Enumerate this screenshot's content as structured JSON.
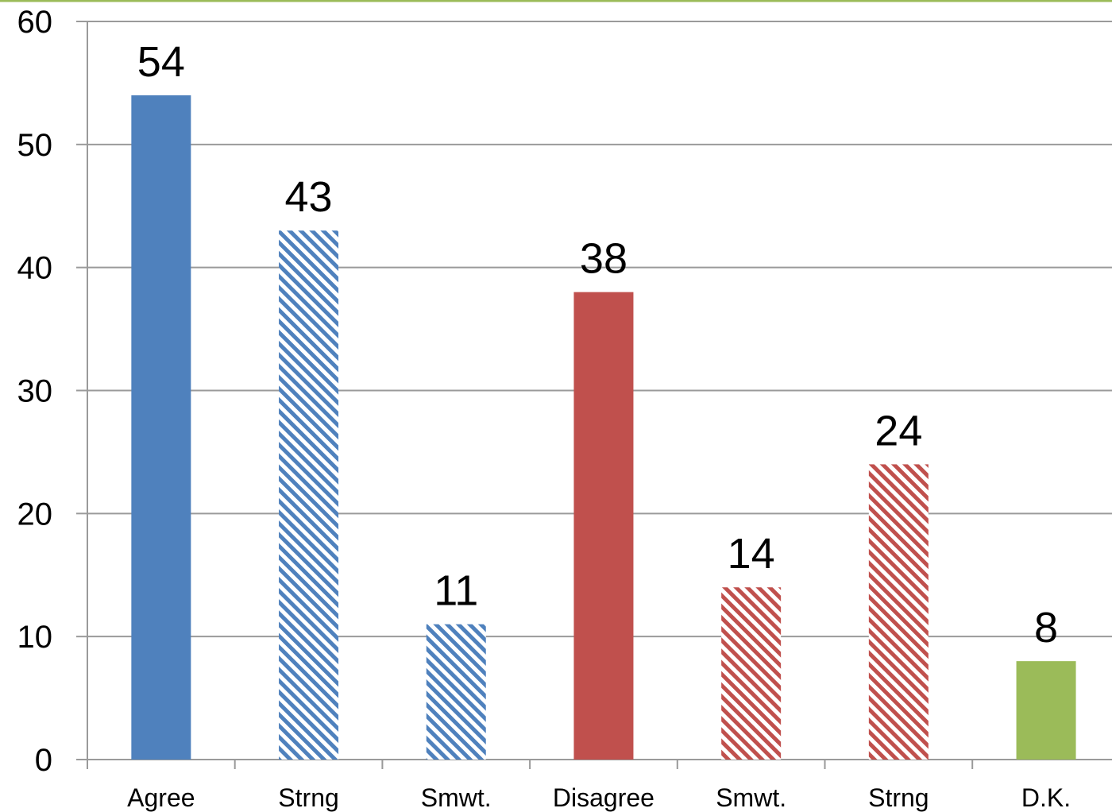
{
  "colors": {
    "blue": "#4f81bd",
    "red": "#c0504d",
    "green": "#9bbb59",
    "gridline": "#9a9a9a",
    "axis": "#9a9a9a",
    "top_border": "#9bbb59"
  },
  "chart_data": {
    "type": "bar",
    "categories": [
      "Agree",
      "Strng",
      "Smwt.",
      "Disagree",
      "Smwt.",
      "Strng",
      "D.K."
    ],
    "values": [
      54,
      43,
      11,
      38,
      14,
      24,
      8
    ],
    "data_labels": [
      "54",
      "43",
      "11",
      "38",
      "14",
      "24",
      "8"
    ],
    "bar_styles": [
      {
        "color": "#4f81bd",
        "fill": "solid"
      },
      {
        "color": "#4f81bd",
        "fill": "hatched"
      },
      {
        "color": "#4f81bd",
        "fill": "hatched"
      },
      {
        "color": "#c0504d",
        "fill": "solid"
      },
      {
        "color": "#c0504d",
        "fill": "hatched"
      },
      {
        "color": "#c0504d",
        "fill": "hatched"
      },
      {
        "color": "#9bbb59",
        "fill": "solid"
      }
    ],
    "title": "",
    "xlabel": "",
    "ylabel": "",
    "ylim": [
      0,
      60
    ],
    "yticks": [
      0,
      10,
      20,
      30,
      40,
      50,
      60
    ],
    "grid": true,
    "legend": "none"
  }
}
